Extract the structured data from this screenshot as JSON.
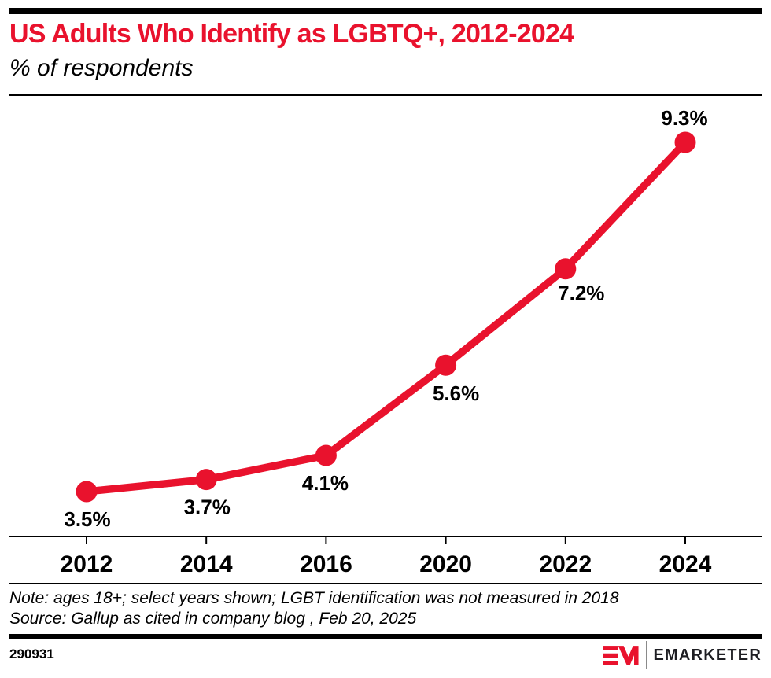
{
  "header": {
    "title": "US Adults Who Identify as LGBTQ+, 2012-2024",
    "subtitle": "% of respondents"
  },
  "chart_data": {
    "type": "line",
    "categories": [
      "2012",
      "2014",
      "2016",
      "2020",
      "2022",
      "2024"
    ],
    "values": [
      3.5,
      3.7,
      4.1,
      5.6,
      7.2,
      9.3
    ],
    "point_labels": [
      "3.5%",
      "3.7%",
      "4.1%",
      "5.6%",
      "7.2%",
      "9.3%"
    ],
    "title": "US Adults Who Identify as LGBTQ+, 2012-2024",
    "xlabel": "",
    "ylabel": "% of respondents",
    "ylim": [
      2.75,
      9.9
    ],
    "grid": false,
    "legend": "none",
    "line_color": "#e9122d",
    "axis_color": "#000000",
    "marker": "circle"
  },
  "footer": {
    "note": "Note: ages 18+; select years shown; LGBT identification was not measured in 2018",
    "source": "Source: Gallup as cited in company blog , Feb 20, 2025",
    "chart_id": "290931",
    "brand": {
      "monogram": "EM",
      "name": "EMARKETER"
    }
  },
  "colors": {
    "accent_red": "#e9122d",
    "text": "#000000",
    "brand_text": "#1e1e23"
  }
}
